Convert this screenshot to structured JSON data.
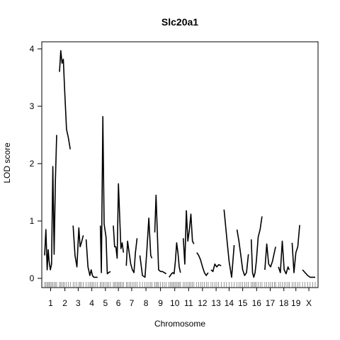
{
  "chart_data": {
    "type": "line",
    "title": "Slc20a1",
    "xlabel": "Chromosome",
    "ylabel": "LOD score",
    "ylim": [
      0,
      4.2
    ],
    "yticks": [
      0,
      1,
      2,
      3,
      4
    ],
    "grid": false,
    "legend": "none",
    "line_color": "#000000",
    "chromosomes": [
      {
        "label": "1",
        "pos": [
          0,
          10,
          20,
          28,
          35,
          45,
          55,
          65,
          75,
          85,
          95
        ],
        "lod": [
          0.4,
          0.85,
          0.15,
          0.5,
          0.3,
          0.15,
          0.25,
          1.95,
          0.42,
          1.7,
          2.5
        ]
      },
      {
        "label": "2",
        "pos": [
          0,
          10,
          20,
          30,
          40,
          55,
          70,
          85
        ],
        "lod": [
          3.6,
          3.97,
          3.75,
          3.82,
          3.3,
          2.6,
          2.45,
          2.25
        ]
      },
      {
        "label": "3",
        "pos": [
          0,
          15,
          30,
          45,
          55,
          65,
          80
        ],
        "lod": [
          0.92,
          0.4,
          0.2,
          0.88,
          0.55,
          0.62,
          0.75
        ]
      },
      {
        "label": "4",
        "pos": [
          0,
          15,
          30,
          40,
          50,
          60,
          75,
          90
        ],
        "lod": [
          0.68,
          0.2,
          0.05,
          0.15,
          0.05,
          0.02,
          0.02,
          0.02
        ]
      },
      {
        "label": "5",
        "pos": [
          0,
          8,
          20,
          30,
          45,
          55,
          65,
          80
        ],
        "lod": [
          0.92,
          0.1,
          2.82,
          0.95,
          0.72,
          0.08,
          0.1,
          0.12
        ]
      },
      {
        "label": "6",
        "pos": [
          0,
          10,
          20,
          30,
          40,
          50,
          60,
          70,
          80
        ],
        "lod": [
          0.92,
          0.55,
          0.55,
          0.35,
          1.65,
          1.1,
          0.52,
          0.62,
          0.45
        ]
      },
      {
        "label": "7",
        "pos": [
          0,
          10,
          22,
          35,
          48,
          60,
          72,
          85
        ],
        "lod": [
          0.22,
          0.65,
          0.45,
          0.25,
          0.15,
          0.1,
          0.45,
          0.7
        ]
      },
      {
        "label": "8",
        "pos": [
          0,
          20,
          40,
          55,
          70,
          85,
          95
        ],
        "lod": [
          0.4,
          0.05,
          0.02,
          0.5,
          1.05,
          0.4,
          0.35
        ]
      },
      {
        "label": "9",
        "pos": [
          0,
          10,
          20,
          30,
          45,
          60,
          75,
          90
        ],
        "lod": [
          0.8,
          1.45,
          0.8,
          0.15,
          0.12,
          0.12,
          0.1,
          0.08
        ]
      },
      {
        "label": "10",
        "pos": [
          0,
          10,
          20,
          30,
          40,
          50,
          60,
          70,
          80,
          90
        ],
        "lod": [
          0.02,
          0.05,
          0.08,
          0.1,
          0.08,
          0.3,
          0.62,
          0.45,
          0.2,
          0.1
        ]
      },
      {
        "label": "11",
        "pos": [
          0,
          12,
          24,
          36,
          48,
          60,
          72,
          84
        ],
        "lod": [
          0.7,
          0.25,
          1.18,
          0.65,
          0.85,
          1.12,
          0.65,
          0.6
        ]
      },
      {
        "label": "12",
        "pos": [
          0,
          15,
          30,
          45,
          60,
          75,
          90
        ],
        "lod": [
          0.45,
          0.4,
          0.32,
          0.2,
          0.1,
          0.05,
          0.1
        ]
      },
      {
        "label": "13",
        "pos": [
          0,
          15,
          30,
          45,
          60,
          80
        ],
        "lod": [
          0.15,
          0.12,
          0.25,
          0.2,
          0.24,
          0.22
        ]
      },
      {
        "label": "14",
        "pos": [
          0,
          20,
          40,
          60,
          80
        ],
        "lod": [
          1.2,
          0.75,
          0.3,
          0.02,
          0.58
        ]
      },
      {
        "label": "15",
        "pos": [
          0,
          15,
          30,
          45,
          60,
          75,
          90
        ],
        "lod": [
          0.85,
          0.65,
          0.4,
          0.15,
          0.05,
          0.1,
          0.42
        ]
      },
      {
        "label": "16",
        "pos": [
          0,
          10,
          20,
          30,
          40,
          55,
          70,
          85
        ],
        "lod": [
          0.68,
          0.1,
          0.02,
          0.1,
          0.3,
          0.72,
          0.85,
          1.08
        ]
      },
      {
        "label": "17",
        "pos": [
          0,
          15,
          30,
          45,
          60,
          75,
          85
        ],
        "lod": [
          0.15,
          0.6,
          0.25,
          0.2,
          0.3,
          0.45,
          0.55
        ]
      },
      {
        "label": "18",
        "pos": [
          0,
          15,
          30,
          45,
          60,
          75,
          85
        ],
        "lod": [
          0.2,
          0.1,
          0.65,
          0.15,
          0.08,
          0.2,
          0.15
        ]
      },
      {
        "label": "19",
        "pos": [
          0,
          15,
          30,
          45,
          60
        ],
        "lod": [
          0.62,
          0.1,
          0.45,
          0.55,
          0.93
        ]
      },
      {
        "label": "X",
        "pos": [
          0,
          20,
          40,
          60,
          80,
          100
        ],
        "lod": [
          0.15,
          0.1,
          0.05,
          0.02,
          0.02,
          0.02
        ]
      }
    ]
  }
}
